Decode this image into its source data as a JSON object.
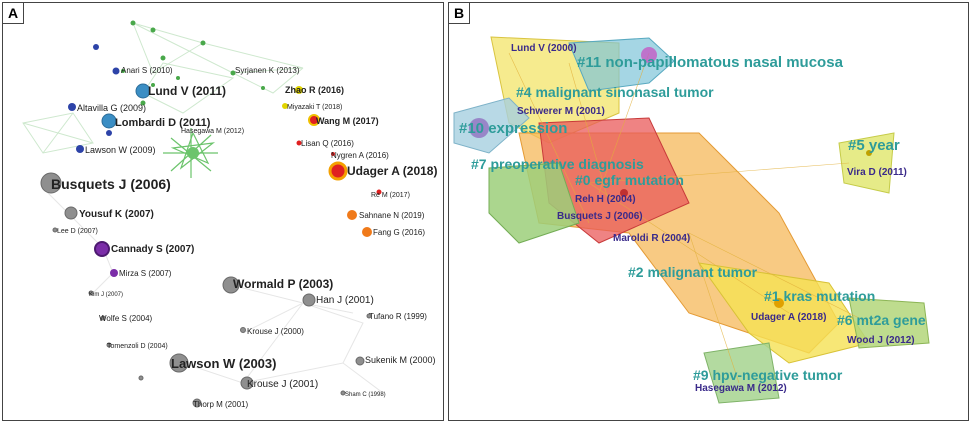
{
  "panelA": {
    "label": "A",
    "nodes": [
      {
        "label": "Anari S (2010)"
      },
      {
        "label": "Syrjanen K (2013)"
      },
      {
        "label": "Lund V (2011)"
      },
      {
        "label": "Zhao R (2016)"
      },
      {
        "label": "Miyazaki T (2018)"
      },
      {
        "label": "Altavilla G (2009)"
      },
      {
        "label": "Wang M (2017)"
      },
      {
        "label": "Lombardi D (2011)"
      },
      {
        "label": "Hasegawa M (2012)"
      },
      {
        "label": "Lisan Q (2016)"
      },
      {
        "label": "Lawson W (2009)"
      },
      {
        "label": "Nygren A (2016)"
      },
      {
        "label": "Udager A (2018)"
      },
      {
        "label": "Busquets J (2006)"
      },
      {
        "label": "Re M (2017)"
      },
      {
        "label": "Yousuf K (2007)"
      },
      {
        "label": "Sahnane N (2019)"
      },
      {
        "label": "Lee D (2007)"
      },
      {
        "label": "Fang G (2016)"
      },
      {
        "label": "Cannady S (2007)"
      },
      {
        "label": "Mirza S (2007)"
      },
      {
        "label": "Wormald P (2003)"
      },
      {
        "label": "Kim J (2007)"
      },
      {
        "label": "Han J (2001)"
      },
      {
        "label": "Tufano R (1999)"
      },
      {
        "label": "Wolfe S (2004)"
      },
      {
        "label": "Krouse J (2000)"
      },
      {
        "label": "Tomenzoli D (2004)"
      },
      {
        "label": "Sukenik M (2000)"
      },
      {
        "label": "Lawson W (2003)"
      },
      {
        "label": "Krouse J (2001)"
      },
      {
        "label": "Sham C (1998)"
      },
      {
        "label": "Thorp M (2001)"
      }
    ]
  },
  "panelB": {
    "label": "B",
    "clusters": [
      {
        "label": "#11 non-papillomatous nasal mucosa"
      },
      {
        "label": "#4 malignant sinonasal tumor"
      },
      {
        "label": "#10 expression"
      },
      {
        "label": "#5 year"
      },
      {
        "label": "#7 preoperative diagnosis"
      },
      {
        "label": "#0 egfr mutation"
      },
      {
        "label": "#2 malignant tumor"
      },
      {
        "label": "#1 kras mutation"
      },
      {
        "label": "#6 mt2a gene"
      },
      {
        "label": "#9 hpv-negative tumor"
      }
    ],
    "authors": [
      {
        "label": "Lund V (2000)"
      },
      {
        "label": "Schwerer M (2001)"
      },
      {
        "label": "Vira D (2011)"
      },
      {
        "label": "Reh H (2004)"
      },
      {
        "label": "Busquets J (2006)"
      },
      {
        "label": "Maroldi R (2004)"
      },
      {
        "label": "Udager A (2018)"
      },
      {
        "label": "Wood J (2012)"
      },
      {
        "label": "Hasegawa M (2012)"
      }
    ]
  }
}
